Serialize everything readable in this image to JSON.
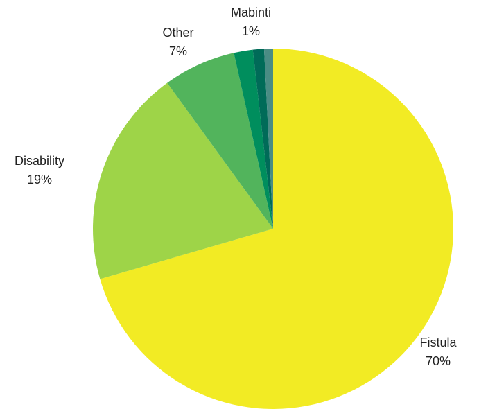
{
  "chart_data": {
    "type": "pie",
    "start_angle_deg": 0,
    "direction": "clockwise",
    "slices": [
      {
        "label": "Fistula",
        "percent_label": "70%",
        "value": 70.5,
        "color": "#F2EB24",
        "labeled": true
      },
      {
        "label": "Disability",
        "percent_label": "19%",
        "value": 19.5,
        "color": "#9ED448",
        "labeled": true
      },
      {
        "label": "Other",
        "percent_label": "7%",
        "value": 6.5,
        "color": "#52B45C",
        "labeled": true
      },
      {
        "label": "",
        "percent_label": "",
        "value": 1.7,
        "color": "#008E5D",
        "labeled": false
      },
      {
        "label": "",
        "percent_label": "",
        "value": 1.0,
        "color": "#006B58",
        "labeled": false
      },
      {
        "label": "Mabinti",
        "percent_label": "1%",
        "value": 0.8,
        "color": "#4A8C84",
        "labeled": true
      }
    ]
  }
}
